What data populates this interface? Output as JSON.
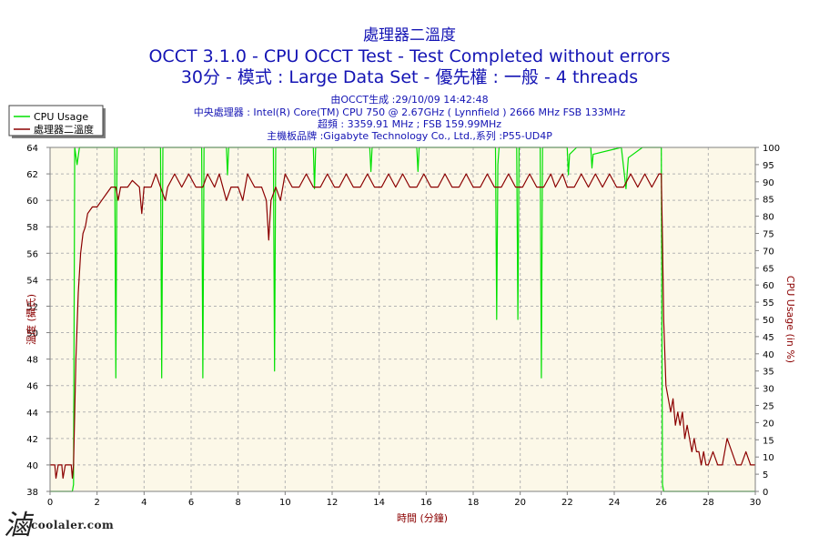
{
  "header": {
    "title_line1": "處理器二溫度",
    "title_line2": "OCCT 3.1.0 - CPU OCCT Test - Test Completed without errors",
    "title_line3": "30分 - 模式 : Large Data Set - 優先權 : 一般 - 4 threads",
    "info_line1": "由OCCT生成 :29/10/09 14:42:48",
    "info_line2": "中央處理器 : Intel(R) Core(TM) CPU 750 @ 2.67GHz ( Lynnfield ) 2666 MHz FSB 133MHz",
    "info_line3": "超頻 : 3359.91 MHz ; FSB 159.99MHz",
    "info_line4": "主機板品牌 :Gigabyte Technology Co., Ltd.,系列 :P55-UD4P"
  },
  "watermark": {
    "glyph": "滷",
    "site": "coolaler.com"
  },
  "colors": {
    "plot_bg": "#fcf8e8",
    "grid": "#b4b4b4",
    "temp_line": "#8b0000",
    "cpu_line": "#00e000",
    "left_axis_label": "#8b0000",
    "right_axis_label": "#8b0000",
    "x_axis_label": "#8b0000"
  },
  "chart_data": {
    "type": "line",
    "xlabel": "時間 (分鐘)",
    "ylabel_left": "溫度 (攝氏)",
    "ylabel_right": "CPU Usage (in %)",
    "xlim": [
      0,
      30
    ],
    "ylim_left": [
      38,
      64
    ],
    "ylim_right": [
      0,
      100
    ],
    "x_ticks": [
      0,
      2,
      4,
      6,
      8,
      10,
      12,
      14,
      16,
      18,
      20,
      22,
      24,
      26,
      28,
      30
    ],
    "y_ticks_left": [
      38,
      40,
      42,
      44,
      46,
      48,
      50,
      52,
      54,
      56,
      58,
      60,
      62,
      64
    ],
    "y_ticks_right": [
      0,
      5,
      10,
      15,
      20,
      25,
      30,
      35,
      40,
      45,
      50,
      55,
      60,
      65,
      70,
      75,
      80,
      85,
      90,
      95,
      100
    ],
    "grid": true,
    "legend": {
      "position": "top-left"
    },
    "series": [
      {
        "name": "CPU Usage",
        "axis": "right",
        "color": "#00e000",
        "points": [
          [
            0,
            0
          ],
          [
            0.95,
            0
          ],
          [
            1.0,
            2
          ],
          [
            1.05,
            100
          ],
          [
            1.15,
            95
          ],
          [
            1.25,
            100
          ],
          [
            2.75,
            100
          ],
          [
            2.8,
            33
          ],
          [
            2.85,
            100
          ],
          [
            4.7,
            100
          ],
          [
            4.75,
            33
          ],
          [
            4.8,
            100
          ],
          [
            6.45,
            100
          ],
          [
            6.5,
            33
          ],
          [
            6.55,
            100
          ],
          [
            7.5,
            100
          ],
          [
            7.55,
            92
          ],
          [
            7.6,
            100
          ],
          [
            9.5,
            100
          ],
          [
            9.55,
            35
          ],
          [
            9.6,
            100
          ],
          [
            11.2,
            100
          ],
          [
            11.25,
            88
          ],
          [
            11.3,
            100
          ],
          [
            13.6,
            100
          ],
          [
            13.65,
            93
          ],
          [
            13.7,
            100
          ],
          [
            15.6,
            100
          ],
          [
            15.65,
            93
          ],
          [
            15.7,
            100
          ],
          [
            18.95,
            100
          ],
          [
            19.0,
            50
          ],
          [
            19.05,
            95
          ],
          [
            19.1,
            100
          ],
          [
            19.85,
            100
          ],
          [
            19.9,
            50
          ],
          [
            19.95,
            100
          ],
          [
            20.85,
            100
          ],
          [
            20.9,
            33
          ],
          [
            20.95,
            100
          ],
          [
            22.0,
            100
          ],
          [
            22.05,
            92
          ],
          [
            22.1,
            98
          ],
          [
            22.4,
            100
          ],
          [
            23.0,
            100
          ],
          [
            23.05,
            94
          ],
          [
            23.1,
            98
          ],
          [
            24.3,
            100
          ],
          [
            24.5,
            88
          ],
          [
            24.6,
            97
          ],
          [
            25.2,
            100
          ],
          [
            26.0,
            100
          ],
          [
            26.05,
            2
          ],
          [
            26.1,
            0
          ],
          [
            30,
            0
          ]
        ]
      },
      {
        "name": "處理器二溫度",
        "axis": "left",
        "color": "#8b0000",
        "points": [
          [
            0,
            40
          ],
          [
            0.2,
            40
          ],
          [
            0.25,
            39
          ],
          [
            0.35,
            40
          ],
          [
            0.5,
            40
          ],
          [
            0.55,
            39
          ],
          [
            0.65,
            40
          ],
          [
            0.9,
            40
          ],
          [
            0.95,
            39
          ],
          [
            1.0,
            40
          ],
          [
            1.05,
            44
          ],
          [
            1.1,
            48
          ],
          [
            1.2,
            53
          ],
          [
            1.3,
            56
          ],
          [
            1.4,
            57.5
          ],
          [
            1.5,
            58
          ],
          [
            1.6,
            59
          ],
          [
            1.8,
            59.5
          ],
          [
            2.0,
            59.5
          ],
          [
            2.2,
            60
          ],
          [
            2.4,
            60.5
          ],
          [
            2.6,
            61
          ],
          [
            2.8,
            61
          ],
          [
            2.9,
            60
          ],
          [
            3.0,
            61
          ],
          [
            3.3,
            61
          ],
          [
            3.5,
            61.5
          ],
          [
            3.8,
            61
          ],
          [
            3.9,
            59
          ],
          [
            4.0,
            61
          ],
          [
            4.3,
            61
          ],
          [
            4.5,
            62
          ],
          [
            4.7,
            61
          ],
          [
            4.9,
            60
          ],
          [
            5.0,
            61
          ],
          [
            5.3,
            62
          ],
          [
            5.6,
            61
          ],
          [
            5.9,
            62
          ],
          [
            6.2,
            61
          ],
          [
            6.5,
            61
          ],
          [
            6.7,
            62
          ],
          [
            7.0,
            61
          ],
          [
            7.2,
            62
          ],
          [
            7.5,
            60
          ],
          [
            7.7,
            61
          ],
          [
            8.0,
            61
          ],
          [
            8.2,
            60
          ],
          [
            8.4,
            62
          ],
          [
            8.7,
            61
          ],
          [
            9.0,
            61
          ],
          [
            9.2,
            60
          ],
          [
            9.3,
            57
          ],
          [
            9.4,
            60
          ],
          [
            9.6,
            61
          ],
          [
            9.8,
            60
          ],
          [
            10.0,
            62
          ],
          [
            10.3,
            61
          ],
          [
            10.6,
            61
          ],
          [
            10.9,
            62
          ],
          [
            11.2,
            61
          ],
          [
            11.5,
            61
          ],
          [
            11.8,
            62
          ],
          [
            12.1,
            61
          ],
          [
            12.3,
            61
          ],
          [
            12.6,
            62
          ],
          [
            12.9,
            61
          ],
          [
            13.2,
            61
          ],
          [
            13.5,
            62
          ],
          [
            13.8,
            61
          ],
          [
            14.1,
            61
          ],
          [
            14.4,
            62
          ],
          [
            14.7,
            61
          ],
          [
            15.0,
            62
          ],
          [
            15.3,
            61
          ],
          [
            15.6,
            61
          ],
          [
            15.9,
            62
          ],
          [
            16.2,
            61
          ],
          [
            16.5,
            61
          ],
          [
            16.8,
            62
          ],
          [
            17.1,
            61
          ],
          [
            17.4,
            61
          ],
          [
            17.7,
            62
          ],
          [
            18.0,
            61
          ],
          [
            18.3,
            61
          ],
          [
            18.6,
            62
          ],
          [
            18.9,
            61
          ],
          [
            19.2,
            61
          ],
          [
            19.5,
            62
          ],
          [
            19.8,
            61
          ],
          [
            20.1,
            61
          ],
          [
            20.4,
            62
          ],
          [
            20.7,
            61
          ],
          [
            21.0,
            61
          ],
          [
            21.3,
            62
          ],
          [
            21.5,
            61
          ],
          [
            21.8,
            62
          ],
          [
            22.0,
            61
          ],
          [
            22.3,
            61
          ],
          [
            22.6,
            62
          ],
          [
            22.9,
            61
          ],
          [
            23.2,
            62
          ],
          [
            23.5,
            61
          ],
          [
            23.8,
            62
          ],
          [
            24.1,
            61
          ],
          [
            24.4,
            61
          ],
          [
            24.7,
            62
          ],
          [
            25.0,
            61
          ],
          [
            25.3,
            62
          ],
          [
            25.6,
            61
          ],
          [
            25.9,
            62
          ],
          [
            26.0,
            62
          ],
          [
            26.05,
            57
          ],
          [
            26.1,
            51
          ],
          [
            26.2,
            46
          ],
          [
            26.3,
            45
          ],
          [
            26.4,
            44
          ],
          [
            26.5,
            45
          ],
          [
            26.6,
            43
          ],
          [
            26.7,
            44
          ],
          [
            26.8,
            43
          ],
          [
            26.9,
            44
          ],
          [
            27.0,
            42
          ],
          [
            27.1,
            43
          ],
          [
            27.2,
            42
          ],
          [
            27.3,
            41
          ],
          [
            27.4,
            42
          ],
          [
            27.5,
            41
          ],
          [
            27.6,
            41
          ],
          [
            27.7,
            40
          ],
          [
            27.8,
            41
          ],
          [
            27.9,
            40
          ],
          [
            28.0,
            40
          ],
          [
            28.2,
            41
          ],
          [
            28.4,
            40
          ],
          [
            28.6,
            40
          ],
          [
            28.8,
            42
          ],
          [
            29.0,
            41
          ],
          [
            29.2,
            40
          ],
          [
            29.4,
            40
          ],
          [
            29.6,
            41
          ],
          [
            29.8,
            40
          ],
          [
            30,
            40
          ]
        ]
      }
    ]
  }
}
